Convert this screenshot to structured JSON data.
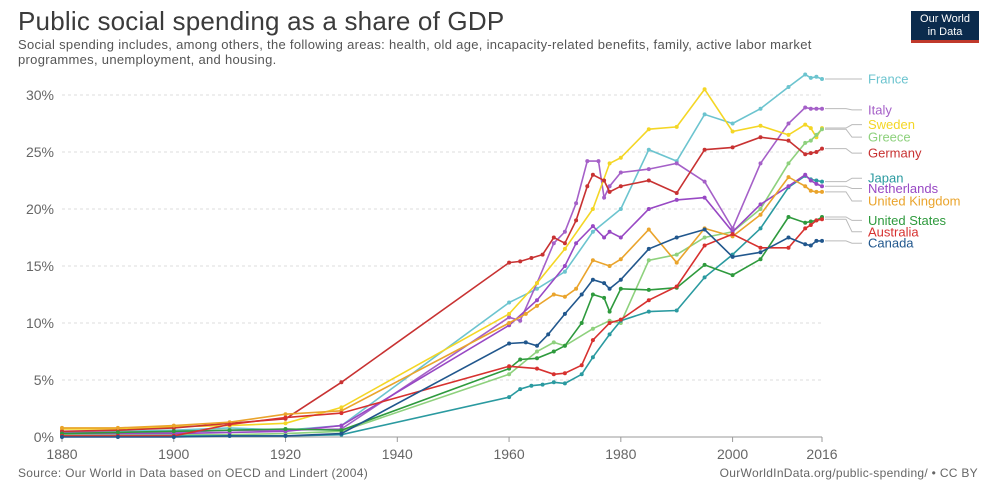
{
  "header": {
    "title": "Public social spending as a share of GDP",
    "subtitle": "Social spending includes, among others, the following areas: health, old age, incapacity-related benefits, family, active labor market programmes, unemployment, and housing.",
    "logo_line1": "Our World",
    "logo_line2": "in Data"
  },
  "footer": {
    "source": "Source: Our World in Data based on OECD and Lindert (2004)",
    "url": "OurWorldInData.org/public-spending/",
    "license": " • CC BY"
  },
  "chart_data": {
    "type": "line",
    "title": "Public social spending as a share of GDP",
    "xlim": [
      1880,
      2016
    ],
    "ylim": [
      0,
      30
    ],
    "x_ticks": [
      1880,
      1900,
      1920,
      1940,
      1960,
      1980,
      2000,
      2016
    ],
    "x_tick_labels": [
      "1880",
      "1900",
      "1920",
      "1940",
      "1960",
      "1980",
      "2000",
      "2016"
    ],
    "y_ticks": [
      0,
      5,
      10,
      15,
      20,
      25,
      30
    ],
    "y_tick_labels": [
      "0%",
      "5%",
      "10%",
      "15%",
      "20%",
      "25%",
      "30%"
    ],
    "grid": "horizontal dashed",
    "legend": "labels at right end of lines",
    "series": [
      {
        "name": "France",
        "color": "#6cc4cf",
        "label_y": 31.4,
        "values": [
          [
            1880,
            0.5
          ],
          [
            1890,
            0.5
          ],
          [
            1900,
            0.6
          ],
          [
            1910,
            0.8
          ],
          [
            1920,
            0.6
          ],
          [
            1930,
            1.0
          ],
          [
            1960,
            11.8
          ],
          [
            1965,
            13.0
          ],
          [
            1970,
            14.5
          ],
          [
            1975,
            18.0
          ],
          [
            1980,
            20.0
          ],
          [
            1985,
            25.2
          ],
          [
            1990,
            24.2
          ],
          [
            1995,
            28.3
          ],
          [
            2000,
            27.5
          ],
          [
            2005,
            28.8
          ],
          [
            2010,
            30.7
          ],
          [
            2013,
            31.8
          ],
          [
            2014,
            31.5
          ],
          [
            2015,
            31.6
          ],
          [
            2016,
            31.4
          ]
        ]
      },
      {
        "name": "Italy",
        "color": "#a560c8",
        "label_y": 28.7,
        "values": [
          [
            1880,
            0.4
          ],
          [
            1890,
            0.4
          ],
          [
            1900,
            0.4
          ],
          [
            1910,
            0.6
          ],
          [
            1920,
            0.6
          ],
          [
            1930,
            0.7
          ],
          [
            1960,
            10.5
          ],
          [
            1962,
            10.2
          ],
          [
            1965,
            13.5
          ],
          [
            1968,
            17.0
          ],
          [
            1970,
            18.0
          ],
          [
            1972,
            20.5
          ],
          [
            1974,
            24.2
          ],
          [
            1976,
            24.2
          ],
          [
            1977,
            21.0
          ],
          [
            1978,
            22.0
          ],
          [
            1980,
            23.2
          ],
          [
            1985,
            23.5
          ],
          [
            1990,
            24.0
          ],
          [
            1995,
            22.4
          ],
          [
            2000,
            18.3
          ],
          [
            2005,
            24.0
          ],
          [
            2010,
            27.5
          ],
          [
            2013,
            28.9
          ],
          [
            2014,
            28.8
          ],
          [
            2015,
            28.8
          ],
          [
            2016,
            28.8
          ]
        ]
      },
      {
        "name": "Sweden",
        "color": "#f4d625",
        "label_y": 27.4,
        "values": [
          [
            1880,
            0.7
          ],
          [
            1890,
            0.7
          ],
          [
            1900,
            0.9
          ],
          [
            1910,
            1.0
          ],
          [
            1920,
            1.2
          ],
          [
            1930,
            2.6
          ],
          [
            1960,
            10.8
          ],
          [
            1965,
            13.5
          ],
          [
            1970,
            16.5
          ],
          [
            1975,
            20.0
          ],
          [
            1978,
            24.0
          ],
          [
            1980,
            24.5
          ],
          [
            1985,
            27.0
          ],
          [
            1990,
            27.2
          ],
          [
            1995,
            30.5
          ],
          [
            2000,
            26.8
          ],
          [
            2005,
            27.3
          ],
          [
            2010,
            26.5
          ],
          [
            2013,
            27.4
          ],
          [
            2014,
            27.1
          ],
          [
            2015,
            26.3
          ],
          [
            2016,
            27.1
          ]
        ]
      },
      {
        "name": "Greece",
        "color": "#8ed17d",
        "label_y": 26.3,
        "values": [
          [
            1880,
            0.2
          ],
          [
            1890,
            0.2
          ],
          [
            1900,
            0.2
          ],
          [
            1910,
            0.2
          ],
          [
            1920,
            0.3
          ],
          [
            1930,
            0.5
          ],
          [
            1960,
            5.5
          ],
          [
            1965,
            7.5
          ],
          [
            1968,
            8.3
          ],
          [
            1970,
            8.0
          ],
          [
            1975,
            9.5
          ],
          [
            1978,
            10.2
          ],
          [
            1980,
            10.0
          ],
          [
            1985,
            15.5
          ],
          [
            1990,
            16.0
          ],
          [
            1995,
            17.5
          ],
          [
            2000,
            18.0
          ],
          [
            2005,
            20.0
          ],
          [
            2010,
            24.0
          ],
          [
            2013,
            25.8
          ],
          [
            2014,
            26.0
          ],
          [
            2015,
            26.5
          ],
          [
            2016,
            27.0
          ]
        ]
      },
      {
        "name": "Germany",
        "color": "#c83232",
        "label_y": 24.9,
        "values": [
          [
            1880,
            0.5
          ],
          [
            1890,
            0.6
          ],
          [
            1900,
            0.8
          ],
          [
            1910,
            1.2
          ],
          [
            1920,
            1.6
          ],
          [
            1930,
            4.8
          ],
          [
            1960,
            15.3
          ],
          [
            1962,
            15.4
          ],
          [
            1964,
            15.7
          ],
          [
            1966,
            16.0
          ],
          [
            1968,
            17.5
          ],
          [
            1970,
            17.0
          ],
          [
            1972,
            19.0
          ],
          [
            1974,
            22.0
          ],
          [
            1975,
            23.0
          ],
          [
            1977,
            22.5
          ],
          [
            1978,
            21.5
          ],
          [
            1980,
            22.0
          ],
          [
            1985,
            22.5
          ],
          [
            1990,
            21.4
          ],
          [
            1995,
            25.2
          ],
          [
            2000,
            25.4
          ],
          [
            2005,
            26.3
          ],
          [
            2010,
            26.0
          ],
          [
            2013,
            24.8
          ],
          [
            2014,
            24.9
          ],
          [
            2015,
            25.0
          ],
          [
            2016,
            25.3
          ]
        ]
      },
      {
        "name": "Japan",
        "color": "#2a9aa0",
        "label_y": 22.7,
        "values": [
          [
            1880,
            0.05
          ],
          [
            1890,
            0.05
          ],
          [
            1900,
            0.1
          ],
          [
            1910,
            0.1
          ],
          [
            1920,
            0.1
          ],
          [
            1930,
            0.2
          ],
          [
            1960,
            3.5
          ],
          [
            1962,
            4.2
          ],
          [
            1964,
            4.5
          ],
          [
            1966,
            4.6
          ],
          [
            1968,
            4.8
          ],
          [
            1970,
            4.7
          ],
          [
            1973,
            5.5
          ],
          [
            1975,
            7.0
          ],
          [
            1978,
            9.0
          ],
          [
            1980,
            10.2
          ],
          [
            1985,
            11.0
          ],
          [
            1990,
            11.1
          ],
          [
            1995,
            14.0
          ],
          [
            2000,
            16.0
          ],
          [
            2005,
            18.3
          ],
          [
            2010,
            21.9
          ],
          [
            2013,
            22.9
          ],
          [
            2014,
            22.6
          ],
          [
            2015,
            22.5
          ],
          [
            2016,
            22.4
          ]
        ]
      },
      {
        "name": "Netherlands",
        "color": "#9848c4",
        "label_y": 21.8,
        "values": [
          [
            1880,
            0.3
          ],
          [
            1890,
            0.3
          ],
          [
            1900,
            0.3
          ],
          [
            1910,
            0.4
          ],
          [
            1920,
            0.5
          ],
          [
            1930,
            1.0
          ],
          [
            1960,
            9.8
          ],
          [
            1965,
            12.0
          ],
          [
            1970,
            15.0
          ],
          [
            1972,
            17.0
          ],
          [
            1975,
            18.5
          ],
          [
            1977,
            17.5
          ],
          [
            1978,
            18.0
          ],
          [
            1980,
            17.5
          ],
          [
            1985,
            20.0
          ],
          [
            1990,
            20.8
          ],
          [
            1995,
            21.0
          ],
          [
            2000,
            18.0
          ],
          [
            2005,
            20.4
          ],
          [
            2010,
            22.0
          ],
          [
            2013,
            23.0
          ],
          [
            2014,
            22.5
          ],
          [
            2015,
            22.2
          ],
          [
            2016,
            22.0
          ]
        ]
      },
      {
        "name": "United Kingdom",
        "color": "#eaa42c",
        "label_y": 20.7,
        "values": [
          [
            1880,
            0.8
          ],
          [
            1890,
            0.8
          ],
          [
            1900,
            1.0
          ],
          [
            1910,
            1.3
          ],
          [
            1920,
            2.0
          ],
          [
            1930,
            2.3
          ],
          [
            1960,
            10.0
          ],
          [
            1963,
            10.8
          ],
          [
            1965,
            11.5
          ],
          [
            1968,
            12.5
          ],
          [
            1970,
            12.3
          ],
          [
            1972,
            13.0
          ],
          [
            1975,
            15.5
          ],
          [
            1978,
            15.0
          ],
          [
            1980,
            15.6
          ],
          [
            1985,
            18.2
          ],
          [
            1990,
            15.3
          ],
          [
            1995,
            18.3
          ],
          [
            2000,
            17.6
          ],
          [
            2005,
            19.5
          ],
          [
            2010,
            22.8
          ],
          [
            2013,
            22.0
          ],
          [
            2014,
            21.6
          ],
          [
            2015,
            21.5
          ],
          [
            2016,
            21.5
          ]
        ]
      },
      {
        "name": "United States",
        "color": "#2e9a3d",
        "label_y": 19.0,
        "values": [
          [
            1880,
            0.3
          ],
          [
            1890,
            0.4
          ],
          [
            1900,
            0.5
          ],
          [
            1910,
            0.6
          ],
          [
            1920,
            0.7
          ],
          [
            1930,
            0.6
          ],
          [
            1960,
            6.0
          ],
          [
            1962,
            6.8
          ],
          [
            1965,
            6.9
          ],
          [
            1968,
            7.5
          ],
          [
            1970,
            8.0
          ],
          [
            1973,
            10.0
          ],
          [
            1975,
            12.5
          ],
          [
            1977,
            12.2
          ],
          [
            1978,
            11.0
          ],
          [
            1980,
            13.0
          ],
          [
            1985,
            12.9
          ],
          [
            1990,
            13.1
          ],
          [
            1995,
            15.1
          ],
          [
            2000,
            14.2
          ],
          [
            2005,
            15.6
          ],
          [
            2010,
            19.3
          ],
          [
            2013,
            18.8
          ],
          [
            2014,
            18.9
          ],
          [
            2015,
            19.0
          ],
          [
            2016,
            19.3
          ]
        ]
      },
      {
        "name": "Australia",
        "color": "#d7312f",
        "label_y": 18.0,
        "values": [
          [
            1880,
            0.1
          ],
          [
            1890,
            0.1
          ],
          [
            1900,
            0.1
          ],
          [
            1910,
            1.1
          ],
          [
            1920,
            1.7
          ],
          [
            1930,
            2.1
          ],
          [
            1960,
            6.2
          ],
          [
            1965,
            6.0
          ],
          [
            1968,
            5.5
          ],
          [
            1970,
            5.6
          ],
          [
            1973,
            6.3
          ],
          [
            1975,
            8.5
          ],
          [
            1978,
            10.0
          ],
          [
            1980,
            10.3
          ],
          [
            1985,
            12.0
          ],
          [
            1990,
            13.2
          ],
          [
            1995,
            16.8
          ],
          [
            2000,
            17.8
          ],
          [
            2005,
            16.6
          ],
          [
            2010,
            16.6
          ],
          [
            2013,
            18.3
          ],
          [
            2014,
            18.6
          ],
          [
            2015,
            19.0
          ],
          [
            2016,
            19.1
          ]
        ]
      },
      {
        "name": "Canada",
        "color": "#21578d",
        "label_y": 17.0,
        "values": [
          [
            1880,
            0.0
          ],
          [
            1890,
            0.0
          ],
          [
            1900,
            0.0
          ],
          [
            1910,
            0.1
          ],
          [
            1920,
            0.1
          ],
          [
            1930,
            0.3
          ],
          [
            1960,
            8.2
          ],
          [
            1963,
            8.3
          ],
          [
            1965,
            8.0
          ],
          [
            1967,
            9.0
          ],
          [
            1970,
            10.8
          ],
          [
            1973,
            12.5
          ],
          [
            1975,
            13.8
          ],
          [
            1977,
            13.5
          ],
          [
            1978,
            13.0
          ],
          [
            1980,
            13.8
          ],
          [
            1985,
            16.5
          ],
          [
            1990,
            17.5
          ],
          [
            1995,
            18.2
          ],
          [
            2000,
            15.8
          ],
          [
            2005,
            16.2
          ],
          [
            2010,
            17.5
          ],
          [
            2013,
            16.9
          ],
          [
            2014,
            16.8
          ],
          [
            2015,
            17.2
          ],
          [
            2016,
            17.2
          ]
        ]
      }
    ]
  }
}
